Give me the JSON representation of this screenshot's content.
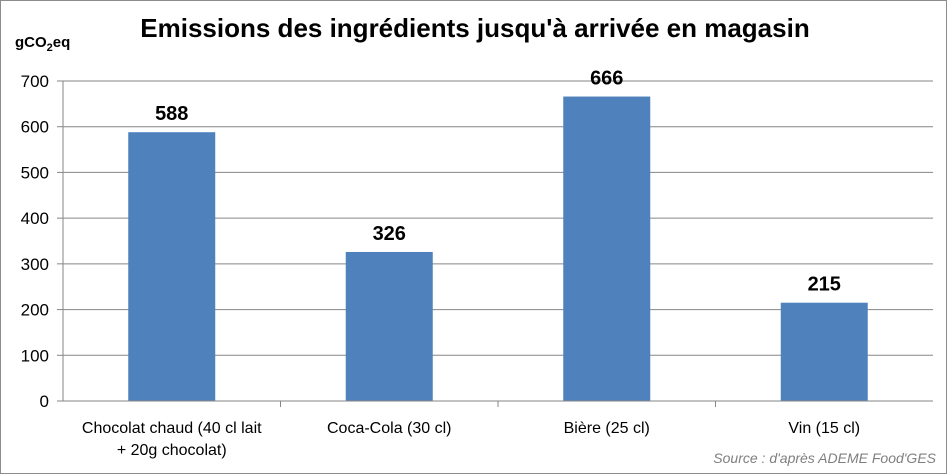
{
  "chart_data": {
    "type": "bar",
    "title": "Emissions des ingrédients jusqu'à arrivée en magasin",
    "ylabel_main": "gCO",
    "ylabel_sub": "2",
    "ylabel_tail": "eq",
    "categories": [
      [
        "Chocolat chaud (40 cl lait",
        "+ 20g chocolat)"
      ],
      [
        "Coca-Cola (30 cl)"
      ],
      [
        "Bière (25 cl)"
      ],
      [
        "Vin (15 cl)"
      ]
    ],
    "values": [
      588,
      326,
      666,
      215
    ],
    "data_labels": [
      "588",
      "326",
      "666",
      "215"
    ],
    "ylim": [
      0,
      700
    ],
    "yticks": [
      0,
      100,
      200,
      300,
      400,
      500,
      600,
      700
    ],
    "grid": true,
    "legend": "none",
    "bar_color": "#4f81bd",
    "grid_color": "#868686",
    "source": "Source : d'après ADEME Food'GES"
  }
}
